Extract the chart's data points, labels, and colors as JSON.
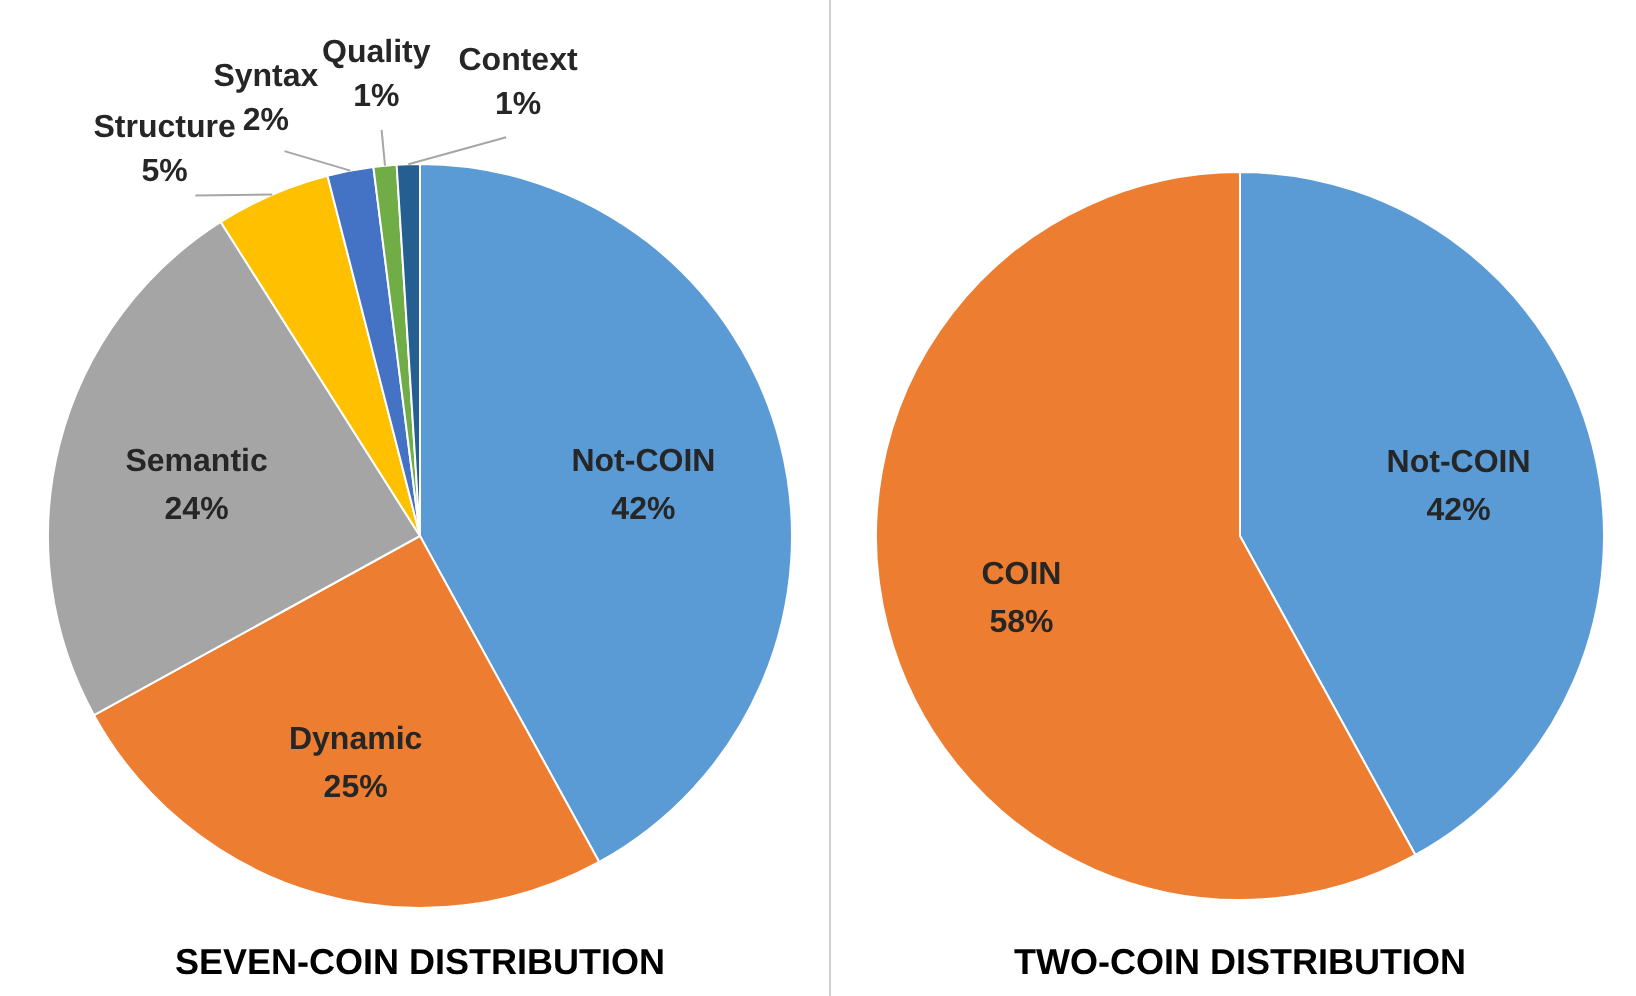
{
  "chart_data": [
    {
      "type": "pie",
      "title": "SEVEN-COIN DISTRIBUTION",
      "categories": [
        "Not-COIN",
        "Dynamic",
        "Semantic",
        "Structure",
        "Syntax",
        "Quality",
        "Context"
      ],
      "values": [
        42,
        25,
        24,
        5,
        2,
        1,
        1
      ],
      "value_labels": [
        "42%",
        "25%",
        "24%",
        "5%",
        "2%",
        "1%",
        "1%"
      ],
      "colors": [
        "#5b9bd5",
        "#ed7d31",
        "#a5a5a5",
        "#ffc000",
        "#4472c4",
        "#70ad47",
        "#255e91"
      ],
      "legend": false
    },
    {
      "type": "pie",
      "title": "TWO-COIN DISTRIBUTION",
      "categories": [
        "Not-COIN",
        "COIN"
      ],
      "values": [
        42,
        58
      ],
      "value_labels": [
        "42%",
        "58%"
      ],
      "colors": [
        "#5b9bd5",
        "#ed7d31"
      ],
      "legend": false
    }
  ]
}
